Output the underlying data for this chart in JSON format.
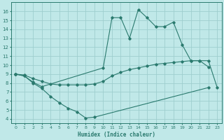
{
  "color": "#2a7a6e",
  "bg_color": "#c0e8e8",
  "grid_color": "#9ecece",
  "xlabel": "Humidex (Indice chaleur)",
  "ylim": [
    3.5,
    17
  ],
  "xlim": [
    -0.5,
    23.5
  ],
  "yticks": [
    4,
    5,
    6,
    7,
    8,
    9,
    10,
    11,
    12,
    13,
    14,
    15,
    16
  ],
  "xticks": [
    0,
    1,
    2,
    3,
    4,
    5,
    6,
    7,
    8,
    9,
    10,
    11,
    12,
    13,
    14,
    15,
    16,
    17,
    18,
    19,
    20,
    21,
    22,
    23
  ],
  "peak_x": [
    0,
    1,
    2,
    3,
    10,
    11,
    12,
    13,
    14,
    15,
    16,
    17,
    18,
    19,
    20,
    21,
    22
  ],
  "peak_y": [
    9.0,
    8.8,
    8.1,
    7.6,
    9.7,
    15.3,
    15.3,
    13.0,
    16.2,
    15.3,
    14.3,
    14.3,
    14.8,
    12.3,
    10.5,
    10.5,
    9.8
  ],
  "mid_x": [
    0,
    1,
    2,
    3,
    4,
    5,
    6,
    7,
    8,
    9,
    10,
    11,
    12,
    13,
    14,
    15,
    16,
    17,
    18,
    19,
    20,
    21,
    22,
    23
  ],
  "mid_y": [
    9.0,
    8.9,
    8.5,
    8.2,
    7.9,
    7.8,
    7.8,
    7.8,
    7.8,
    7.9,
    8.2,
    8.8,
    9.2,
    9.5,
    9.7,
    9.9,
    10.1,
    10.2,
    10.3,
    10.4,
    10.5,
    10.5,
    10.5,
    7.5
  ],
  "low_x": [
    0,
    1,
    2,
    3,
    4,
    5,
    6,
    7,
    8,
    9,
    22
  ],
  "low_y": [
    9.0,
    8.8,
    8.0,
    7.4,
    6.5,
    5.8,
    5.2,
    4.8,
    4.1,
    4.2,
    7.5
  ]
}
